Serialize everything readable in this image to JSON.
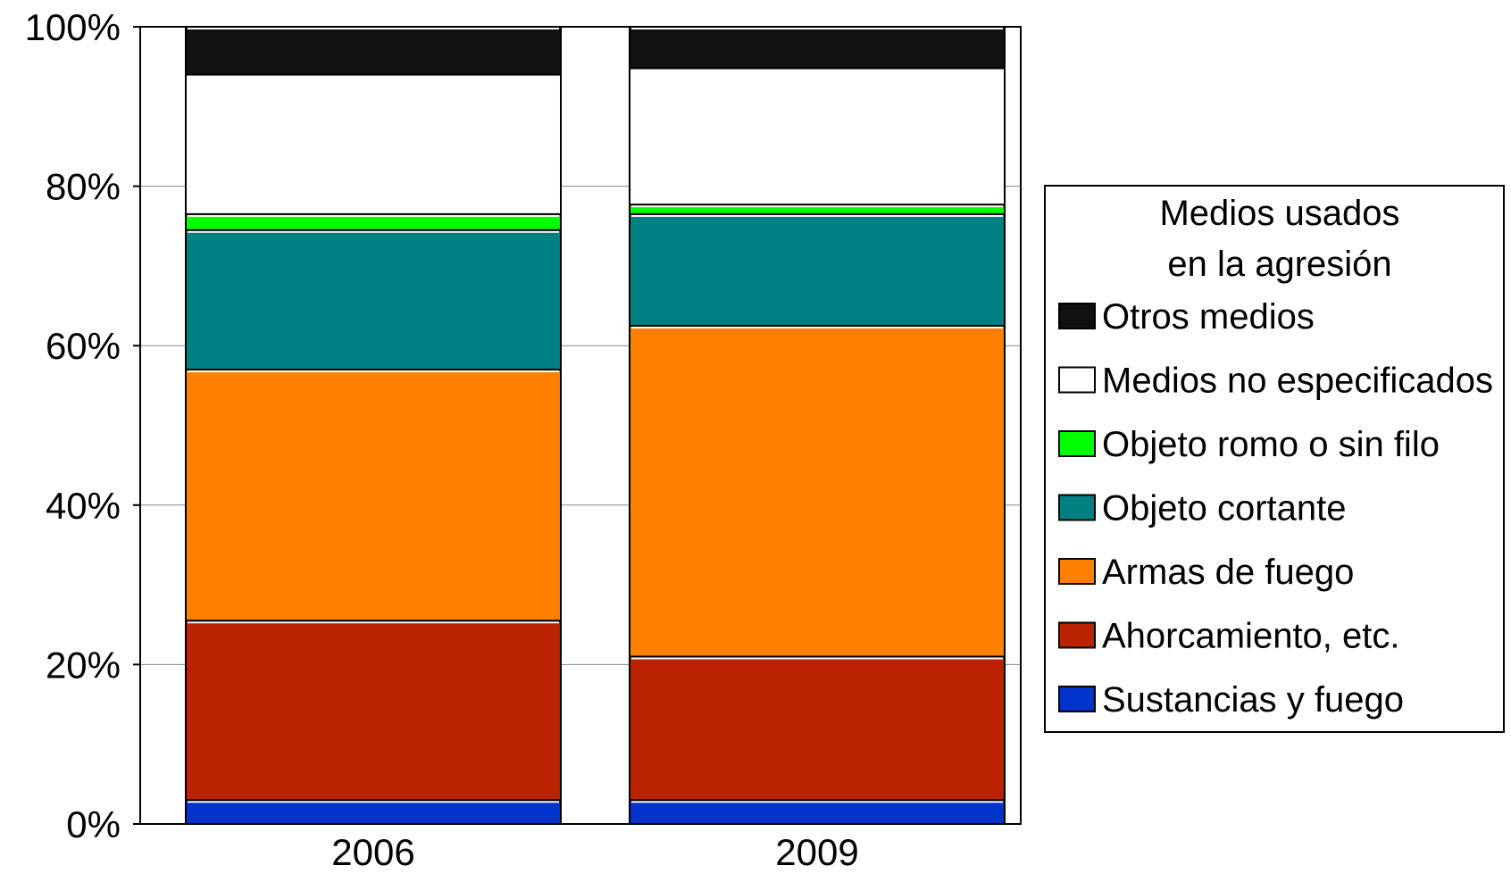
{
  "chart_data": {
    "type": "bar",
    "stacked": true,
    "percent": true,
    "title": "",
    "xlabel": "",
    "ylabel": "",
    "categories": [
      "2006",
      "2009"
    ],
    "ylim": [
      0,
      100
    ],
    "yticks": [
      "0%",
      "20%",
      "40%",
      "60%",
      "80%",
      "100%"
    ],
    "ytick_values": [
      0,
      20,
      40,
      60,
      80,
      100
    ],
    "grid": true,
    "legend_position": "right",
    "legend_title": [
      "Medios usados",
      "en la agresión"
    ],
    "series": [
      {
        "name": "Sustancias y  fuego",
        "color": "#0033cc",
        "values": [
          3.0,
          3.0
        ]
      },
      {
        "name": "Ahorcamiento, etc.",
        "color": "#bb2200",
        "values": [
          22.5,
          18.0
        ]
      },
      {
        "name": "Armas de fuego",
        "color": "#ff8000",
        "values": [
          31.5,
          41.5
        ]
      },
      {
        "name": "Objeto cortante",
        "color": "#008080",
        "values": [
          17.5,
          14.0
        ]
      },
      {
        "name": "Objeto romo o sin filo",
        "color": "#00ff00",
        "values": [
          2.0,
          1.2
        ]
      },
      {
        "name": "Medios no especificados",
        "color": "#ffffff",
        "values": [
          17.5,
          17.1
        ]
      },
      {
        "name": "Otros medios",
        "color": "#111111",
        "values": [
          6.0,
          5.2
        ]
      }
    ]
  }
}
